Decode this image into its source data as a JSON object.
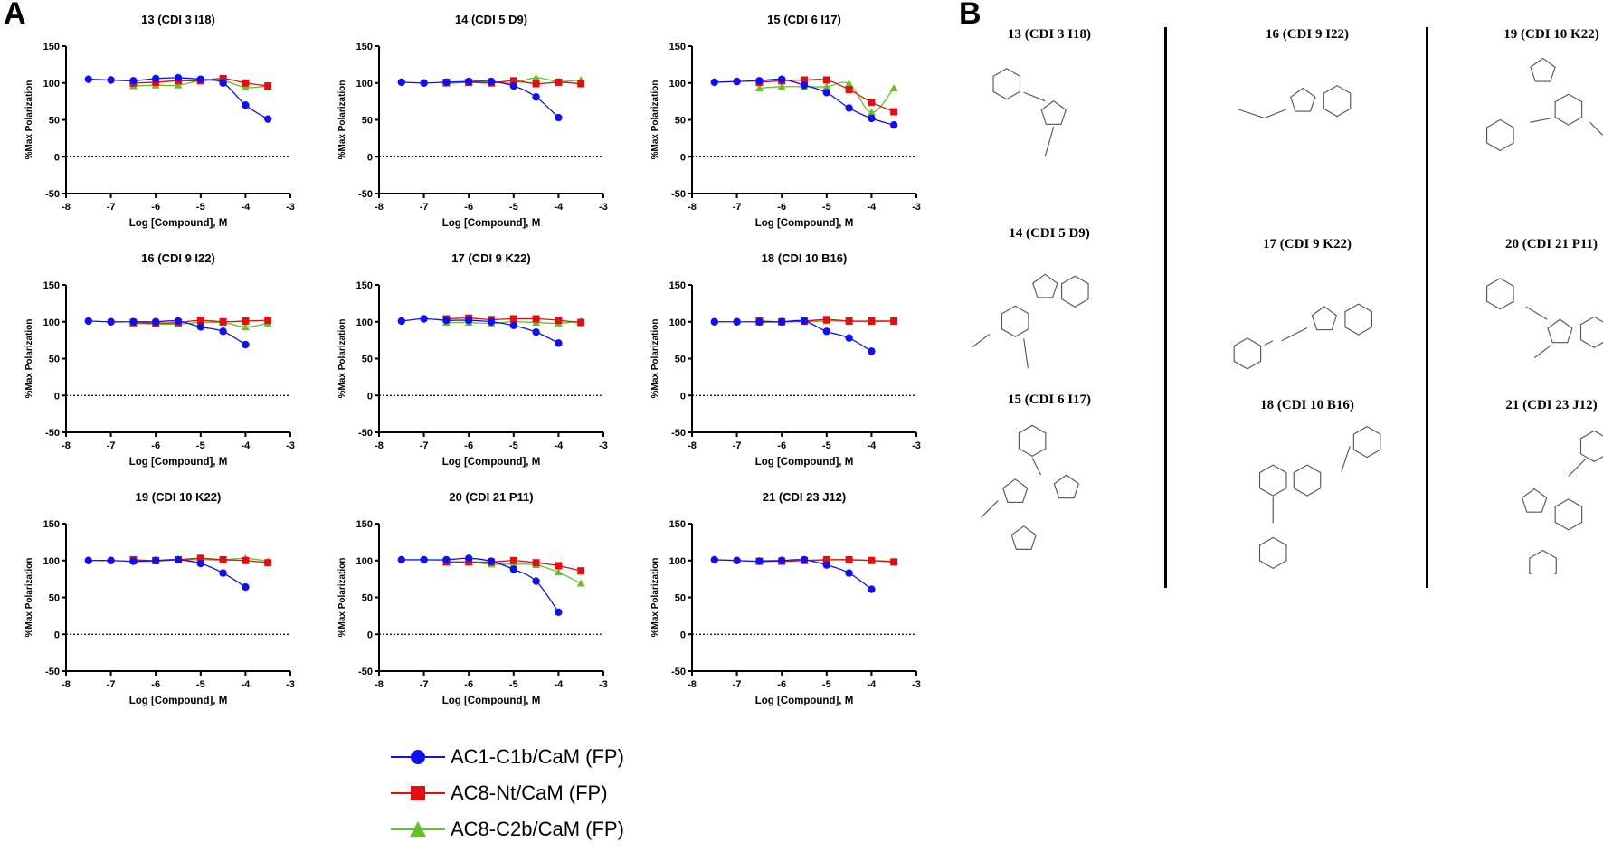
{
  "panel_a_label": "A",
  "panel_b_label": "B",
  "colors": {
    "ac1": "#1010ee",
    "ac8nt": "#e01010",
    "ac8c2b": "#66c02a"
  },
  "legend": [
    {
      "label": "AC1-C1b/CaM (FP)",
      "marker": "circle"
    },
    {
      "label": "AC8-Nt/CaM (FP)",
      "marker": "square"
    },
    {
      "label": "AC8-C2b/CaM (FP)",
      "marker": "triangle"
    }
  ],
  "chart_data": [
    {
      "type": "line",
      "title": "13 (CDI 3 I18)",
      "xlabel": "Log [Compound], M",
      "ylabel": "%Max Polarization",
      "xlim": [
        -8,
        -3
      ],
      "ylim": [
        -50,
        150
      ],
      "xticks": [
        "-8",
        "-7",
        "-6",
        "-5",
        "-4",
        "-3"
      ],
      "yticks": [
        "150",
        "100",
        "50",
        "0",
        "-50"
      ],
      "series": [
        {
          "name": "AC1-C1b/CaM (FP)",
          "x": [
            -7.5,
            -7,
            -6.5,
            -6,
            -5.5,
            -5,
            -4.5,
            -4,
            -3.5
          ],
          "values": [
            105,
            104,
            103,
            106,
            107,
            105,
            100,
            70,
            51
          ]
        },
        {
          "name": "AC8-Nt/CaM (FP)",
          "x": [
            -6.5,
            -6,
            -5.5,
            -5,
            -4.5,
            -4,
            -3.5
          ],
          "values": [
            100,
            101,
            103,
            103,
            106,
            100,
            96
          ]
        },
        {
          "name": "AC8-C2b/CaM (FP)",
          "x": [
            -6.5,
            -6,
            -5.5,
            -5,
            -4.5,
            -4,
            -3.5
          ],
          "values": [
            96,
            97,
            97,
            103,
            103,
            94,
            96
          ]
        }
      ]
    },
    {
      "type": "line",
      "title": "14 (CDI 5 D9)",
      "xlabel": "Log [Compound], M",
      "ylabel": "%Max Polarization",
      "xlim": [
        -8,
        -3
      ],
      "ylim": [
        -50,
        150
      ],
      "xticks": [
        "-8",
        "-7",
        "-6",
        "-5",
        "-4",
        "-3"
      ],
      "yticks": [
        "150",
        "100",
        "50",
        "0",
        "-50"
      ],
      "series": [
        {
          "name": "AC1-C1b/CaM (FP)",
          "x": [
            -7.5,
            -7,
            -6.5,
            -6,
            -5.5,
            -5,
            -4.5,
            -4
          ],
          "values": [
            101,
            100,
            101,
            102,
            102,
            96,
            81,
            53
          ]
        },
        {
          "name": "AC8-Nt/CaM (FP)",
          "x": [
            -6.5,
            -6,
            -5.5,
            -5,
            -4.5,
            -4,
            -3.5
          ],
          "values": [
            101,
            101,
            100,
            103,
            99,
            101,
            99
          ]
        },
        {
          "name": "AC8-C2b/CaM (FP)",
          "x": [
            -6.5,
            -6,
            -5.5,
            -5,
            -4.5,
            -4,
            -3.5
          ],
          "values": [
            99,
            101,
            101,
            100,
            107,
            102,
            104
          ]
        }
      ]
    },
    {
      "type": "line",
      "title": "15 (CDI 6 I17)",
      "xlabel": "Log [Compound], M",
      "ylabel": "%Max Polarization",
      "xlim": [
        -8,
        -3
      ],
      "ylim": [
        -50,
        150
      ],
      "xticks": [
        "-8",
        "-7",
        "-6",
        "-5",
        "-4",
        "-3"
      ],
      "yticks": [
        "150",
        "100",
        "50",
        "0",
        "-50"
      ],
      "series": [
        {
          "name": "AC1-C1b/CaM (FP)",
          "x": [
            -7.5,
            -7,
            -6.5,
            -6,
            -5.5,
            -5,
            -4.5,
            -4,
            -3.5
          ],
          "values": [
            101,
            102,
            103,
            105,
            97,
            87,
            66,
            52,
            43
          ]
        },
        {
          "name": "AC8-Nt/CaM (FP)",
          "x": [
            -6.5,
            -6,
            -5.5,
            -5,
            -4.5,
            -4,
            -3.5
          ],
          "values": [
            101,
            103,
            104,
            104,
            91,
            74,
            61
          ]
        },
        {
          "name": "AC8-C2b/CaM (FP)",
          "x": [
            -6.5,
            -6,
            -5.5,
            -5,
            -4.5,
            -4,
            -3.5
          ],
          "values": [
            93,
            95,
            95,
            95,
            99,
            60,
            93
          ]
        }
      ]
    },
    {
      "type": "line",
      "title": "16 (CDI 9 I22)",
      "xlabel": "Log [Compound], M",
      "ylabel": "%Max Polarization",
      "xlim": [
        -8,
        -3
      ],
      "ylim": [
        -50,
        150
      ],
      "xticks": [
        "-8",
        "-7",
        "-6",
        "-5",
        "-4",
        "-3"
      ],
      "yticks": [
        "150",
        "100",
        "50",
        "0",
        "-50"
      ],
      "series": [
        {
          "name": "AC1-C1b/CaM (FP)",
          "x": [
            -7.5,
            -7,
            -6.5,
            -6,
            -5.5,
            -5,
            -4.5,
            -4
          ],
          "values": [
            101,
            100,
            100,
            100,
            101,
            93,
            87,
            69
          ]
        },
        {
          "name": "AC8-Nt/CaM (FP)",
          "x": [
            -6.5,
            -6,
            -5.5,
            -5,
            -4.5,
            -4,
            -3.5
          ],
          "values": [
            99,
            98,
            99,
            102,
            100,
            101,
            102
          ]
        },
        {
          "name": "AC8-C2b/CaM (FP)",
          "x": [
            -6.5,
            -6,
            -5.5,
            -5,
            -4.5,
            -4,
            -3.5
          ],
          "values": [
            98,
            97,
            97,
            99,
            99,
            93,
            98
          ]
        }
      ]
    },
    {
      "type": "line",
      "title": "17 (CDI 9 K22)",
      "xlabel": "Log [Compound], M",
      "ylabel": "%Max Polarization",
      "xlim": [
        -8,
        -3
      ],
      "ylim": [
        -50,
        150
      ],
      "xticks": [
        "-8",
        "-7",
        "-6",
        "-5",
        "-4",
        "-3"
      ],
      "yticks": [
        "150",
        "100",
        "50",
        "0",
        "-50"
      ],
      "series": [
        {
          "name": "AC1-C1b/CaM (FP)",
          "x": [
            -7.5,
            -7,
            -6.5,
            -6,
            -5.5,
            -5,
            -4.5,
            -4
          ],
          "values": [
            101,
            104,
            102,
            102,
            100,
            95,
            86,
            71
          ]
        },
        {
          "name": "AC8-Nt/CaM (FP)",
          "x": [
            -6.5,
            -6,
            -5.5,
            -5,
            -4.5,
            -4,
            -3.5
          ],
          "values": [
            104,
            105,
            103,
            104,
            104,
            102,
            99
          ]
        },
        {
          "name": "AC8-C2b/CaM (FP)",
          "x": [
            -6.5,
            -6,
            -5.5,
            -5,
            -4.5,
            -4,
            -3.5
          ],
          "values": [
            99,
            99,
            98,
            100,
            99,
            98,
            101
          ]
        }
      ]
    },
    {
      "type": "line",
      "title": "18 (CDI 10 B16)",
      "xlabel": "Log [Compound], M",
      "ylabel": "%Max Polarization",
      "xlim": [
        -8,
        -3
      ],
      "ylim": [
        -50,
        150
      ],
      "xticks": [
        "-8",
        "-7",
        "-6",
        "-5",
        "-4",
        "-3"
      ],
      "yticks": [
        "150",
        "100",
        "50",
        "0",
        "-50"
      ],
      "series": [
        {
          "name": "AC1-C1b/CaM (FP)",
          "x": [
            -7.5,
            -7,
            -6.5,
            -6,
            -5.5,
            -5,
            -4.5,
            -4
          ],
          "values": [
            100,
            100,
            100,
            100,
            101,
            87,
            78,
            60
          ]
        },
        {
          "name": "AC8-Nt/CaM (FP)",
          "x": [
            -6.5,
            -6,
            -5.5,
            -5,
            -4.5,
            -4,
            -3.5
          ],
          "values": [
            101,
            100,
            101,
            103,
            101,
            101,
            101
          ]
        },
        {
          "name": "AC8-C2b/CaM (FP)",
          "x": [
            -6.5,
            -6,
            -5.5,
            -5,
            -4.5,
            -4,
            -3.5
          ],
          "values": [
            99,
            100,
            100,
            101,
            101,
            100,
            101
          ]
        }
      ]
    },
    {
      "type": "line",
      "title": "19 (CDI 10 K22)",
      "xlabel": "Log [Compound], M",
      "ylabel": "%Max Polarization",
      "xlim": [
        -8,
        -3
      ],
      "ylim": [
        -50,
        150
      ],
      "xticks": [
        "-8",
        "-7",
        "-6",
        "-5",
        "-4",
        "-3"
      ],
      "yticks": [
        "150",
        "100",
        "50",
        "0",
        "-50"
      ],
      "series": [
        {
          "name": "AC1-C1b/CaM (FP)",
          "x": [
            -7.5,
            -7,
            -6.5,
            -6,
            -5.5,
            -5,
            -4.5,
            -4
          ],
          "values": [
            100,
            100,
            99,
            100,
            101,
            96,
            83,
            64
          ]
        },
        {
          "name": "AC8-Nt/CaM (FP)",
          "x": [
            -6.5,
            -6,
            -5.5,
            -5,
            -4.5,
            -4,
            -3.5
          ],
          "values": [
            101,
            100,
            101,
            103,
            101,
            100,
            97
          ]
        },
        {
          "name": "AC8-C2b/CaM (FP)",
          "x": [
            -6.5,
            -6,
            -5.5,
            -5,
            -4.5,
            -4,
            -3.5
          ],
          "values": [
            99,
            99,
            101,
            101,
            101,
            103,
            99
          ]
        }
      ]
    },
    {
      "type": "line",
      "title": "20 (CDI 21 P11)",
      "xlabel": "Log [Compound], M",
      "ylabel": "%Max Polarization",
      "xlim": [
        -8,
        -3
      ],
      "ylim": [
        -50,
        150
      ],
      "xticks": [
        "-8",
        "-7",
        "-6",
        "-5",
        "-4",
        "-3"
      ],
      "yticks": [
        "150",
        "100",
        "50",
        "0",
        "-50"
      ],
      "series": [
        {
          "name": "AC1-C1b/CaM (FP)",
          "x": [
            -7.5,
            -7,
            -6.5,
            -6,
            -5.5,
            -5,
            -4.5,
            -4
          ],
          "values": [
            101,
            101,
            101,
            103,
            99,
            88,
            72,
            30
          ]
        },
        {
          "name": "AC8-Nt/CaM (FP)",
          "x": [
            -6.5,
            -6,
            -5.5,
            -5,
            -4.5,
            -4,
            -3.5
          ],
          "values": [
            98,
            98,
            98,
            100,
            97,
            93,
            86
          ]
        },
        {
          "name": "AC8-C2b/CaM (FP)",
          "x": [
            -6.5,
            -6,
            -5.5,
            -5,
            -4.5,
            -4,
            -3.5
          ],
          "values": [
            98,
            98,
            95,
            95,
            94,
            84,
            69
          ]
        }
      ]
    },
    {
      "type": "line",
      "title": "21 (CDI 23 J12)",
      "xlabel": "Log [Compound], M",
      "ylabel": "%Max Polarization",
      "xlim": [
        -8,
        -3
      ],
      "ylim": [
        -50,
        150
      ],
      "xticks": [
        "-8",
        "-7",
        "-6",
        "-5",
        "-4",
        "-3"
      ],
      "yticks": [
        "150",
        "100",
        "50",
        "0",
        "-50"
      ],
      "series": [
        {
          "name": "AC1-C1b/CaM (FP)",
          "x": [
            -7.5,
            -7,
            -6.5,
            -6,
            -5.5,
            -5,
            -4.5,
            -4
          ],
          "values": [
            101,
            100,
            99,
            100,
            101,
            94,
            83,
            61
          ]
        },
        {
          "name": "AC8-Nt/CaM (FP)",
          "x": [
            -6.5,
            -6,
            -5.5,
            -5,
            -4.5,
            -4,
            -3.5
          ],
          "values": [
            99,
            99,
            100,
            101,
            101,
            100,
            98
          ]
        },
        {
          "name": "AC8-C2b/CaM (FP)",
          "x": [
            -6.5,
            -6,
            -5.5,
            -5,
            -4.5,
            -4,
            -3.5
          ],
          "values": [
            100,
            100,
            100,
            101,
            101,
            100,
            99
          ]
        }
      ]
    }
  ],
  "structures": [
    {
      "title": "13 (CDI 3 I18)"
    },
    {
      "title": "14 (CDI 5 D9)"
    },
    {
      "title": "15 (CDI 6 I17)"
    },
    {
      "title": "16 (CDI 9 I22)"
    },
    {
      "title": "17 (CDI 9 K22)"
    },
    {
      "title": "18 (CDI 10 B16)"
    },
    {
      "title": "19 (CDI 10 K22)"
    },
    {
      "title": "20 (CDI 21 P11)"
    },
    {
      "title": "21 (CDI 23 J12)"
    }
  ]
}
